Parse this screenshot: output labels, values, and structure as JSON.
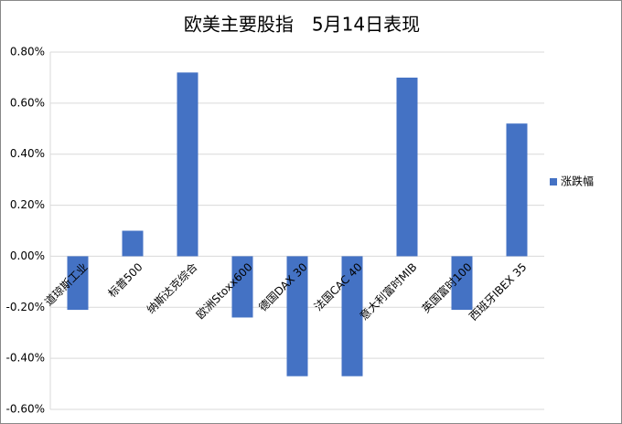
{
  "chart_data": {
    "type": "bar",
    "title": "欧美主要股指　5月14日表现",
    "categories": [
      "道琼斯工业",
      "标普500",
      "纳斯达克综合",
      "欧洲Stoxx600",
      "德国DAX 30",
      "法国CAC 40",
      "意大利富时MIB",
      "英国富时100",
      "西班牙IBEX 35"
    ],
    "series": [
      {
        "name": "涨跌幅",
        "color": "#4472c4",
        "values": [
          -0.21,
          0.1,
          0.72,
          -0.24,
          -0.47,
          -0.47,
          0.7,
          -0.21,
          0.52
        ]
      }
    ],
    "ylim": [
      -0.6,
      0.8
    ],
    "yticks": [
      {
        "value": -0.6,
        "label": "-0.60%"
      },
      {
        "value": -0.4,
        "label": "-0.40%"
      },
      {
        "value": -0.2,
        "label": "-0.20%"
      },
      {
        "value": 0,
        "label": "0.00%"
      },
      {
        "value": 0.2,
        "label": "0.20%"
      },
      {
        "value": 0.4,
        "label": "0.40%"
      },
      {
        "value": 0.6,
        "label": "0.60%"
      },
      {
        "value": 0.8,
        "label": "0.80%"
      }
    ],
    "grid": true,
    "legend": "right"
  }
}
